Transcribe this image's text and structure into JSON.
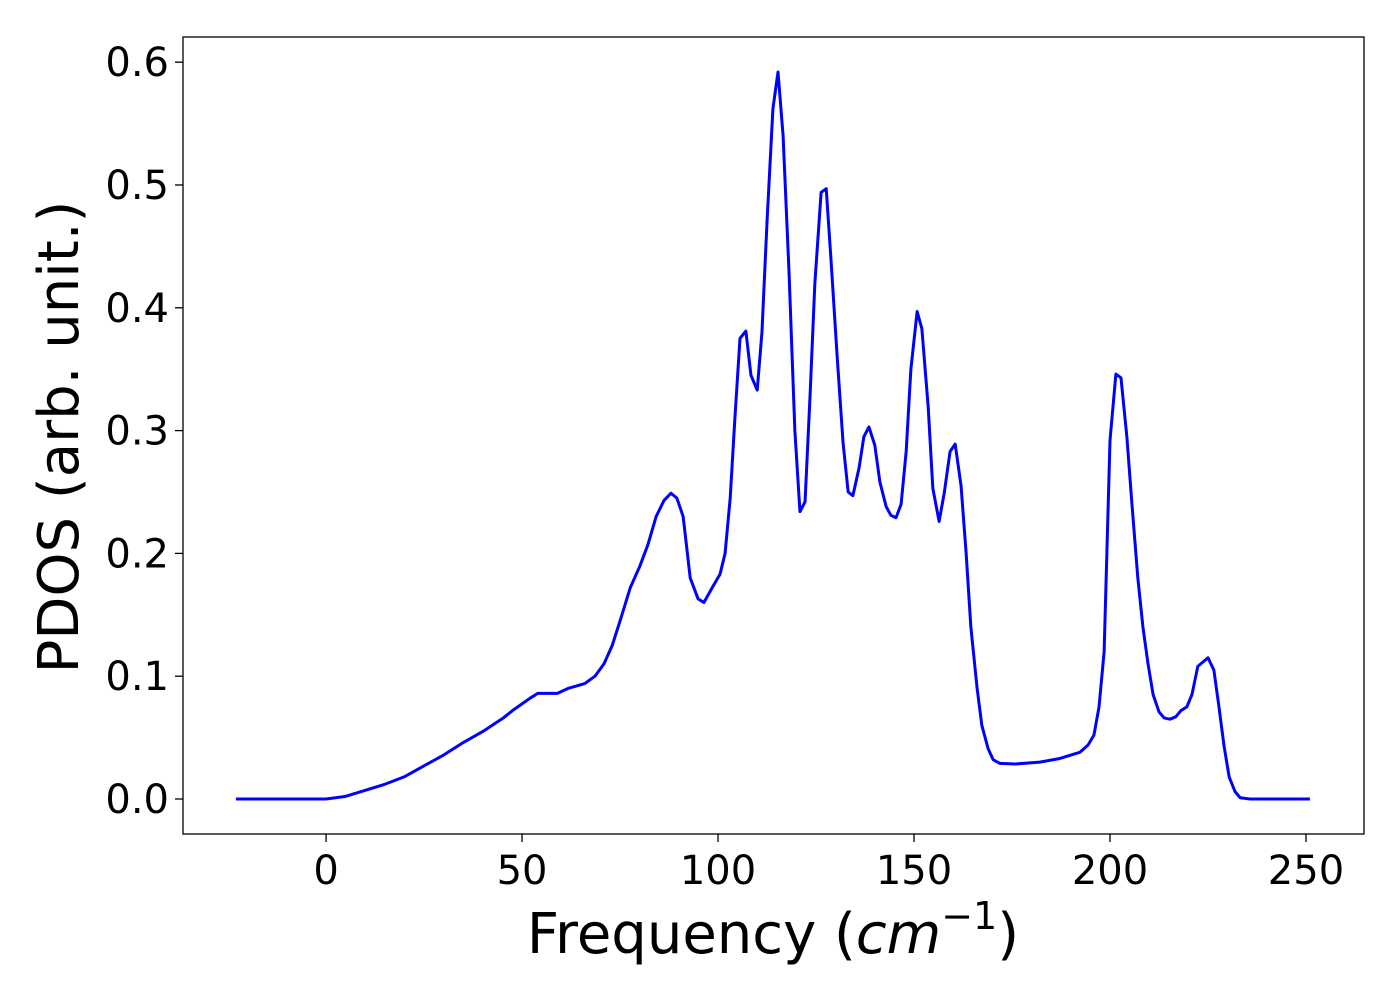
{
  "chart_data": {
    "type": "line",
    "xlabel_parts": [
      "Frequency (",
      "cm",
      "−1",
      ")"
    ],
    "ylabel": "PDOS (arb. unit.)",
    "x": [
      -23,
      0,
      4.8,
      9.9,
      15,
      19.9,
      25,
      30.1,
      35,
      40,
      45.2,
      48,
      52,
      54,
      56.6,
      59,
      61.7,
      66,
      68.6,
      70.9,
      73,
      75,
      77.6,
      80.1,
      82.1,
      84.2,
      86.2,
      88,
      89.5,
      91.1,
      92.9,
      94.9,
      96.4,
      98.5,
      100.5,
      101.8,
      103.1,
      104.3,
      105.6,
      107.1,
      108.4,
      110,
      111.2,
      112.5,
      114,
      115.3,
      116.6,
      118.1,
      119.6,
      120.9,
      122.2,
      123.5,
      124.7,
      126.3,
      127.6,
      128.8,
      130.4,
      131.9,
      133.2,
      134.4,
      136,
      137.2,
      138.5,
      140,
      141.3,
      142.9,
      144.1,
      145.4,
      146.7,
      148,
      149.2,
      150.8,
      152,
      153.6,
      154.8,
      156.4,
      157.7,
      159.2,
      160.5,
      162,
      163.3,
      164.5,
      166.1,
      167.3,
      168.9,
      170.2,
      171.9,
      175.8,
      182.1,
      187.2,
      192.3,
      194.4,
      195.9,
      197.2,
      198.5,
      200,
      201.5,
      202.8,
      204.3,
      205.6,
      207.1,
      208.4,
      209.7,
      211,
      212.5,
      213.8,
      215.3,
      216.8,
      218.1,
      219.6,
      220.9,
      222.4,
      225,
      226.5,
      227.8,
      229.1,
      230.4,
      231.9,
      233.2,
      235.7,
      251
    ],
    "values": [
      0,
      0,
      0.002,
      0.007,
      0.012,
      0.018,
      0.027,
      0.036,
      0.046,
      0.055,
      0.066,
      0.073,
      0.082,
      0.086,
      0.086,
      0.086,
      0.09,
      0.094,
      0.1,
      0.11,
      0.125,
      0.145,
      0.172,
      0.19,
      0.207,
      0.23,
      0.243,
      0.249,
      0.245,
      0.23,
      0.18,
      0.163,
      0.16,
      0.172,
      0.183,
      0.2,
      0.245,
      0.31,
      0.375,
      0.381,
      0.345,
      0.333,
      0.38,
      0.47,
      0.562,
      0.592,
      0.54,
      0.43,
      0.3,
      0.234,
      0.242,
      0.33,
      0.42,
      0.494,
      0.497,
      0.44,
      0.36,
      0.29,
      0.25,
      0.247,
      0.27,
      0.295,
      0.303,
      0.288,
      0.258,
      0.238,
      0.231,
      0.229,
      0.24,
      0.283,
      0.35,
      0.397,
      0.383,
      0.32,
      0.253,
      0.226,
      0.249,
      0.283,
      0.289,
      0.255,
      0.2,
      0.14,
      0.09,
      0.06,
      0.041,
      0.032,
      0.029,
      0.0285,
      0.03,
      0.033,
      0.038,
      0.044,
      0.052,
      0.075,
      0.12,
      0.292,
      0.346,
      0.343,
      0.295,
      0.24,
      0.18,
      0.14,
      0.11,
      0.085,
      0.071,
      0.066,
      0.065,
      0.067,
      0.072,
      0.075,
      0.085,
      0.108,
      0.115,
      0.105,
      0.075,
      0.043,
      0.018,
      0.006,
      0.001,
      0,
      0
    ],
    "color": "#0000ff",
    "xlim": [
      -36.5,
      264.8
    ],
    "ylim": [
      -0.0285,
      0.6205
    ],
    "xticks": [
      0,
      50,
      100,
      150,
      200,
      250
    ],
    "yticks": [
      {
        "value": 0,
        "label": "0.0"
      },
      0.1,
      0.2,
      0.3,
      0.4,
      0.5,
      0.6
    ],
    "grid": false
  }
}
